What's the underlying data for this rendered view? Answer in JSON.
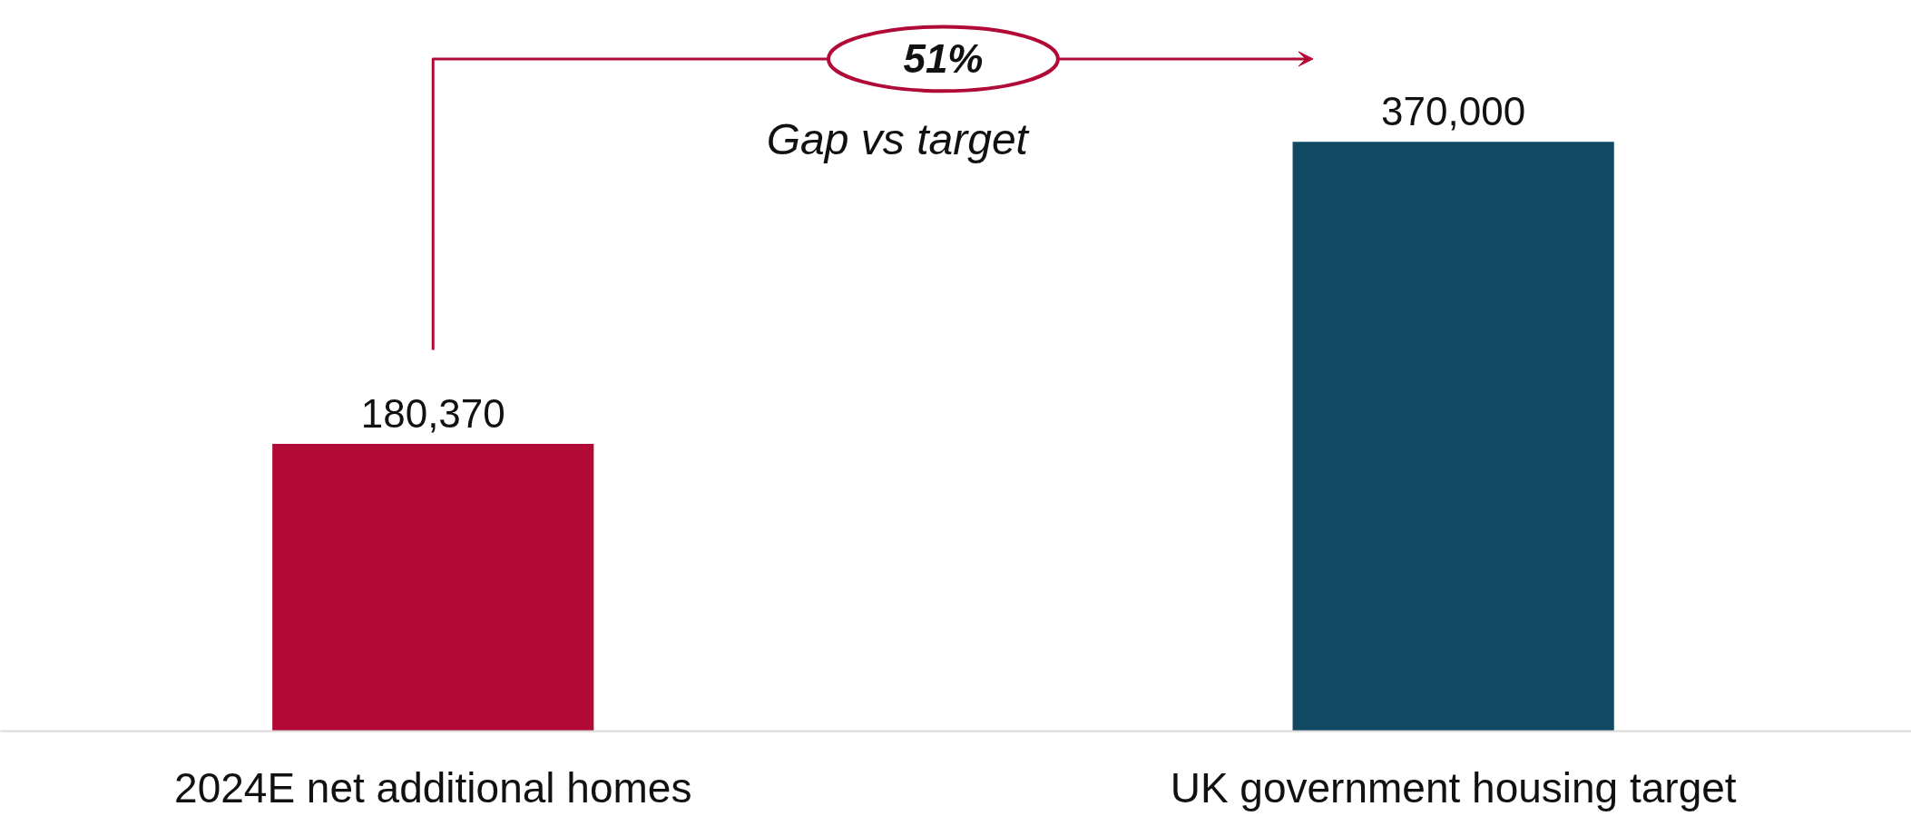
{
  "chart_data": {
    "type": "bar",
    "categories": [
      "2024E net additional homes",
      "UK government housing target"
    ],
    "values": [
      180370,
      370000
    ],
    "colors": [
      "#b20a37",
      "#114863"
    ],
    "value_labels": [
      "180,370",
      "370,000"
    ],
    "annotations": [
      "51%",
      "Gap vs target"
    ]
  }
}
